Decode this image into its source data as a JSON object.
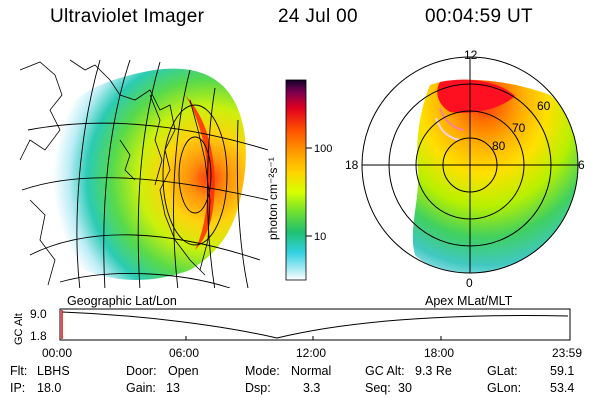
{
  "header": {
    "instrument": "Ultraviolet Imager",
    "date": "24 Jul 00",
    "time": "00:04:59 UT"
  },
  "geo_panel": {
    "label": "Geographic Lat/Lon"
  },
  "polar_panel": {
    "label": "Apex MLat/MLT",
    "mlt_labels": {
      "top": "12",
      "bottom": "0",
      "left": "18",
      "right": "6"
    },
    "lat_labels": [
      "60",
      "70",
      "80"
    ]
  },
  "colorbar": {
    "unit_label": "photon cm⁻²s⁻¹",
    "ticks": [
      "100",
      "10"
    ],
    "colors": [
      "#1a0030",
      "#c00050",
      "#ff1010",
      "#ff6000",
      "#ffa000",
      "#ffd000",
      "#d8ff00",
      "#60e040",
      "#20c070",
      "#30d0d0",
      "#a0e8f0",
      "#ffffff"
    ]
  },
  "timeline": {
    "axis_label": "GC Alt",
    "y_ticks": [
      "9.0",
      "1.8"
    ],
    "x_ticks": [
      "00:00",
      "06:00",
      "12:00",
      "18:00",
      "23:59"
    ]
  },
  "info": {
    "flt_label": "Flt:",
    "flt_value": "LBHS",
    "ip_label": "IP:",
    "ip_value": "18.0",
    "door_label": "Door:",
    "door_value": "Open",
    "gain_label": "Gain:",
    "gain_value": "13",
    "mode_label": "Mode:",
    "mode_value": "Normal",
    "dsp_label": "Dsp:",
    "dsp_value": "3.3",
    "gcalt_label": "GC Alt:",
    "gcalt_value": "9.3 Re",
    "seq_label": "Seq:",
    "seq_value": "30",
    "glat_label": "GLat:",
    "glat_value": "59.1",
    "glon_label": "GLon:",
    "glon_value": "53.4"
  }
}
